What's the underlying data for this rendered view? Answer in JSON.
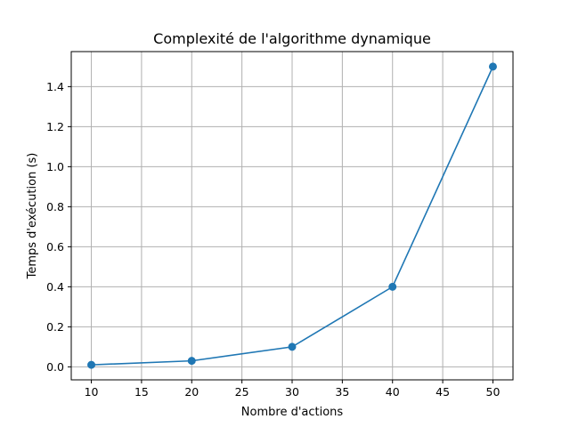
{
  "chart_data": {
    "type": "line",
    "title": "Complexité de l'algorithme dynamique",
    "xlabel": "Nombre d'actions",
    "ylabel": "Temps d'exécution (s)",
    "xlim": [
      8,
      52
    ],
    "ylim": [
      -0.065,
      1.575
    ],
    "xticks": [
      10,
      15,
      20,
      25,
      30,
      35,
      40,
      45,
      50
    ],
    "yticks": [
      0.0,
      0.2,
      0.4,
      0.6,
      0.8,
      1.0,
      1.2,
      1.4
    ],
    "xtick_labels": [
      "10",
      "15",
      "20",
      "25",
      "30",
      "35",
      "40",
      "45",
      "50"
    ],
    "ytick_labels": [
      "0.0",
      "0.2",
      "0.4",
      "0.6",
      "0.8",
      "1.0",
      "1.2",
      "1.4"
    ],
    "grid": true,
    "series": [
      {
        "color": "#1f77b4",
        "marker": "circle",
        "x": [
          10,
          20,
          30,
          40,
          50
        ],
        "y": [
          0.01,
          0.03,
          0.1,
          0.4,
          1.5
        ]
      }
    ]
  }
}
